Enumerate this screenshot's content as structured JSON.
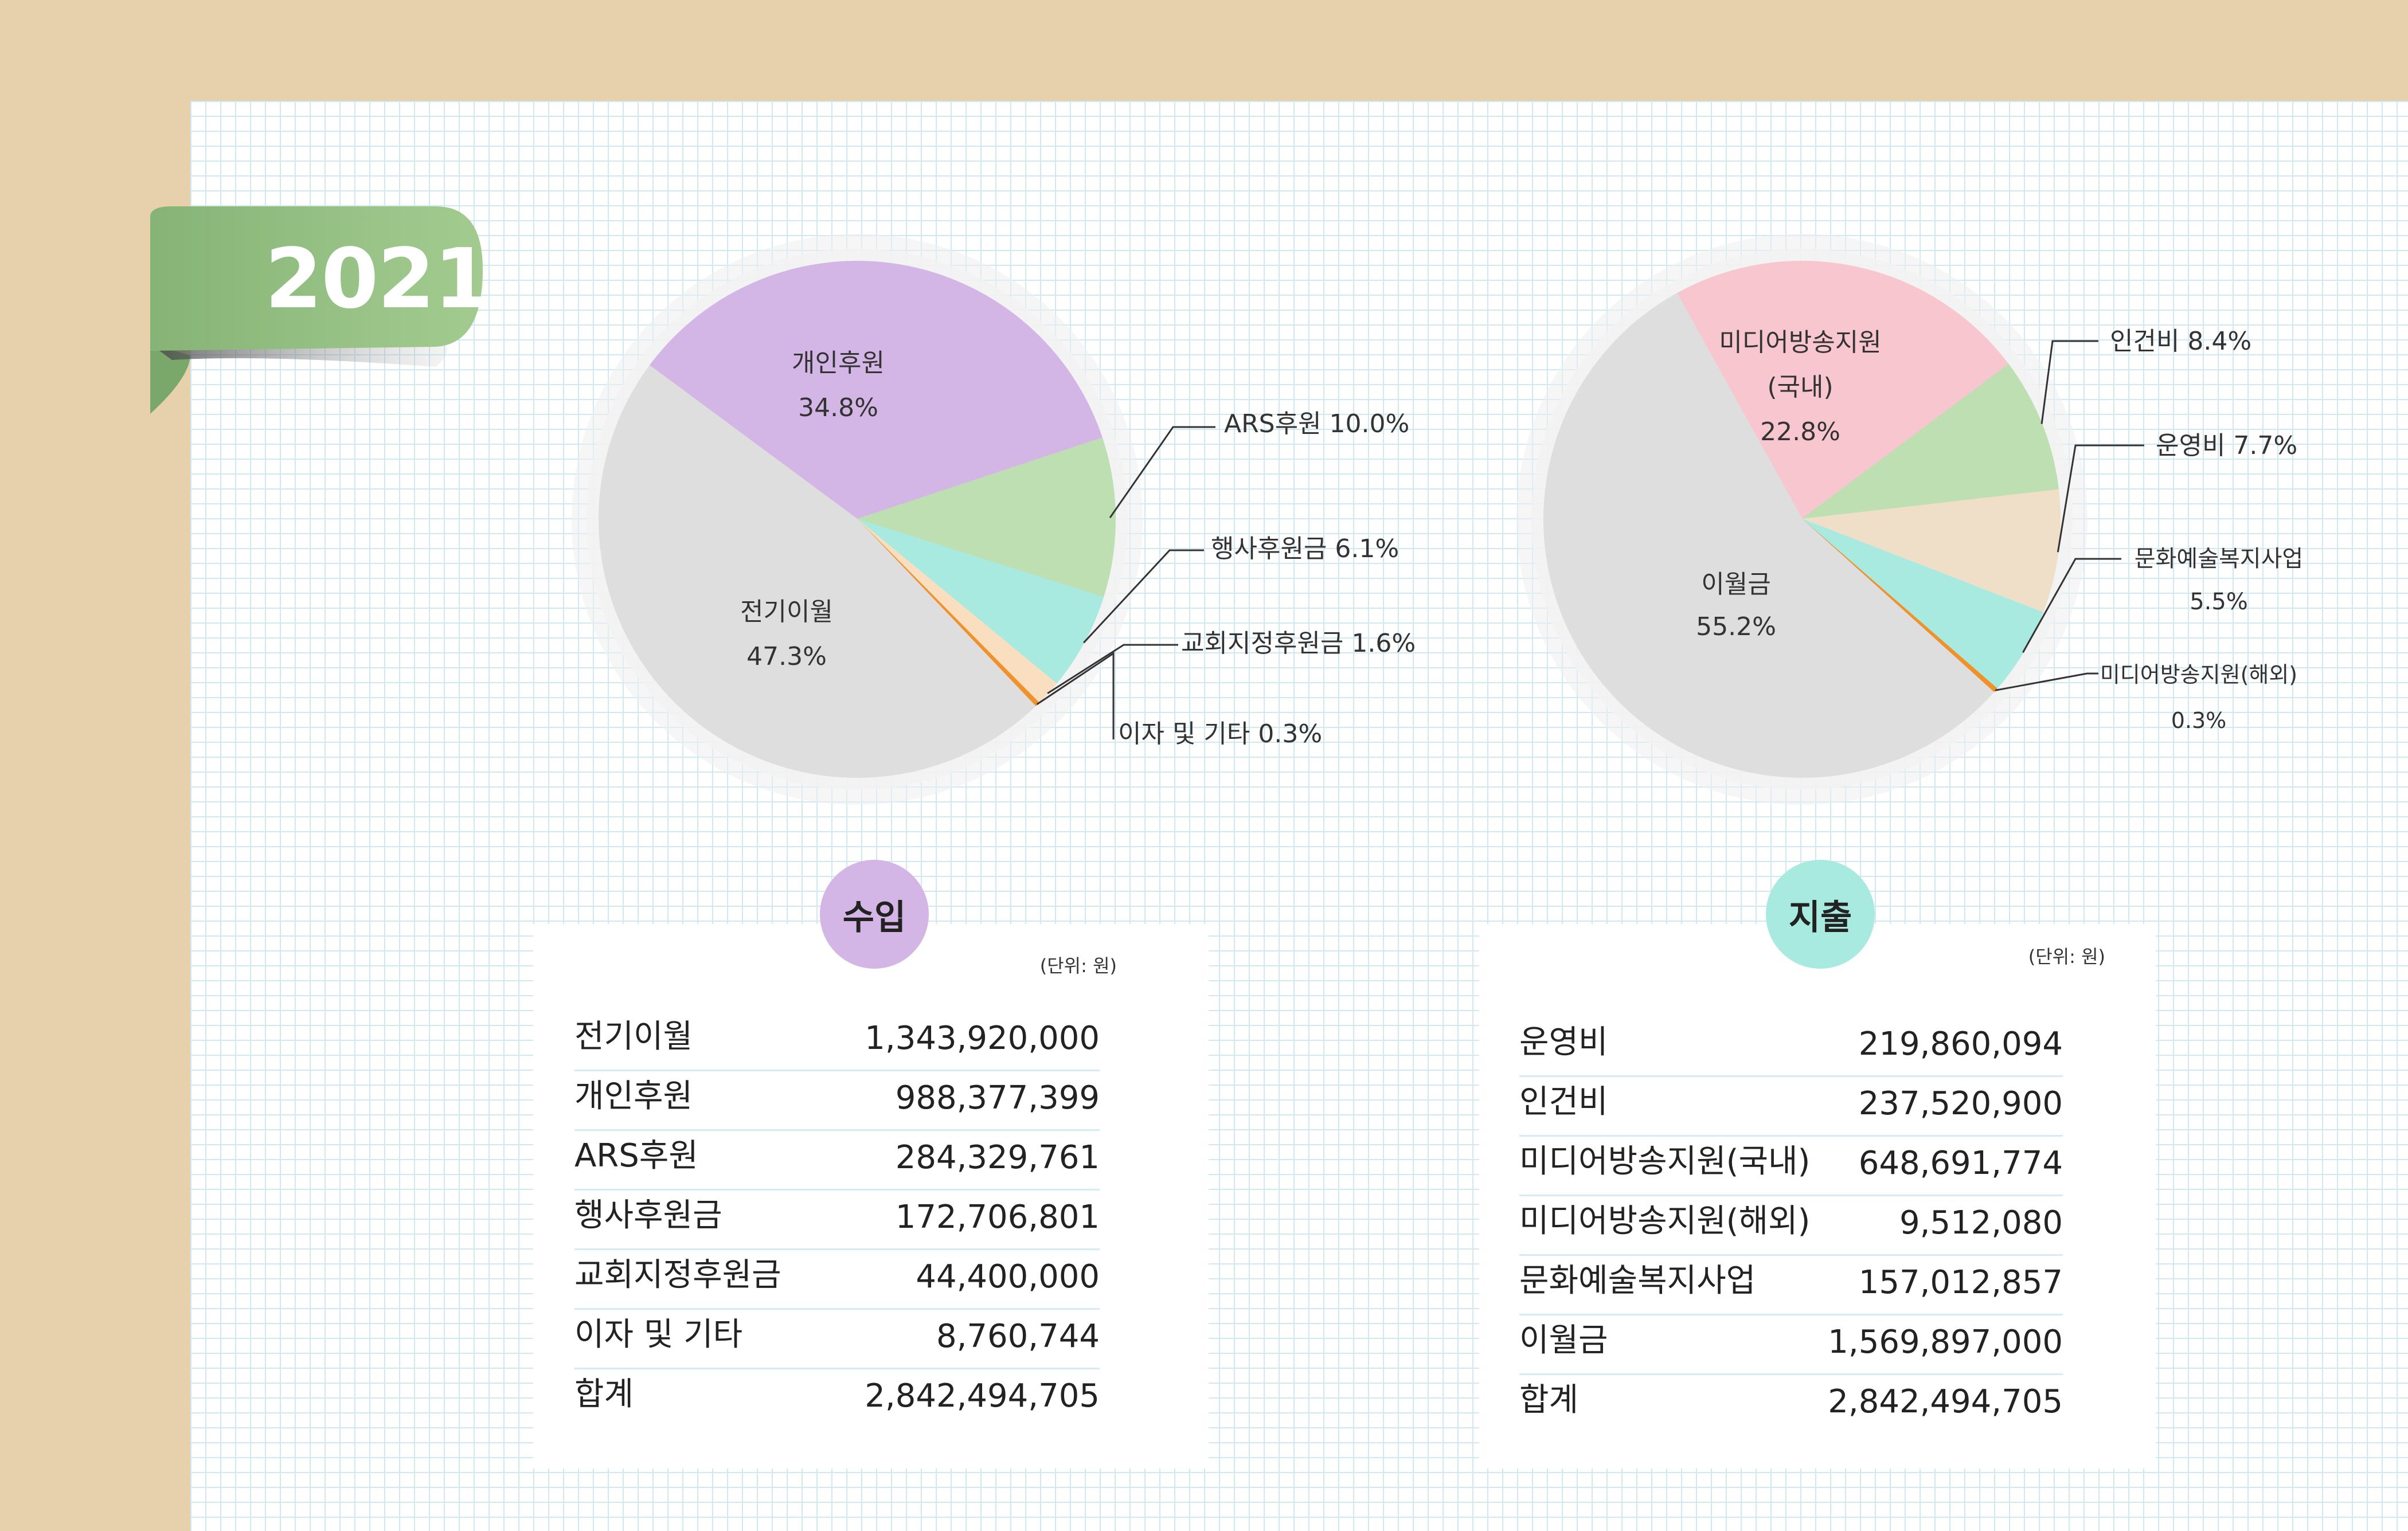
{
  "year": "2021",
  "income": {
    "title": "수입",
    "unit": "(단위: 원)",
    "rows": [
      {
        "label": "전기이월",
        "amount": "1,343,920,000"
      },
      {
        "label": "개인후원",
        "amount": "988,377,399"
      },
      {
        "label": "ARS후원",
        "amount": "284,329,761"
      },
      {
        "label": "행사후원금",
        "amount": "172,706,801"
      },
      {
        "label": "교회지정후원금",
        "amount": "44,400,000"
      },
      {
        "label": "이자 및 기타",
        "amount": "8,760,744"
      },
      {
        "label": "합계",
        "amount": "2,842,494,705"
      }
    ]
  },
  "expense": {
    "title": "지출",
    "unit": "(단위: 원)",
    "rows": [
      {
        "label": "운영비",
        "amount": "219,860,094"
      },
      {
        "label": "인건비",
        "amount": "237,520,900"
      },
      {
        "label": "미디어방송지원(국내)",
        "amount": "648,691,774"
      },
      {
        "label": "미디어방송지원(해외)",
        "amount": "9,512,080"
      },
      {
        "label": "문화예술복지사업",
        "amount": "157,012,857"
      },
      {
        "label": "이월금",
        "amount": "1,569,897,000"
      },
      {
        "label": "합계",
        "amount": "2,842,494,705"
      }
    ]
  },
  "chart_data": [
    {
      "type": "pie",
      "slices": [
        {
          "name": "개인후원",
          "value": 34.8,
          "color": "#d4b6e6",
          "label_lines": [
            "개인후원",
            "34.8%"
          ]
        },
        {
          "name": "ARS후원",
          "value": 10.0,
          "color": "#bddfb1",
          "label_lines": [
            "ARS후원 10.0%"
          ]
        },
        {
          "name": "행사후원금",
          "value": 6.1,
          "color": "#a9eae0",
          "label_lines": [
            "행사후원금 6.1%"
          ]
        },
        {
          "name": "교회지정후원금",
          "value": 1.6,
          "color": "#f9dfc0",
          "label_lines": [
            "교회지정후원금 1.6%"
          ]
        },
        {
          "name": "이자 및 기타",
          "value": 0.3,
          "color": "#f0912a",
          "label_lines": [
            "이자 및 기타 0.3%"
          ]
        },
        {
          "name": "전기이월",
          "value": 47.3,
          "color": "#dedede",
          "label_lines": [
            "전기이월",
            "47.3%"
          ]
        }
      ]
    },
    {
      "type": "pie",
      "slices": [
        {
          "name": "미디어방송지원(국내)",
          "value": 22.8,
          "color": "#f7c6cf",
          "label_lines": [
            "미디어방송지원",
            "(국내)",
            "22.8%"
          ]
        },
        {
          "name": "인건비",
          "value": 8.4,
          "color": "#bddfb1",
          "label_lines": [
            "인건비 8.4%"
          ]
        },
        {
          "name": "운영비",
          "value": 7.7,
          "color": "#efdfc9",
          "label_lines": [
            "운영비 7.7%"
          ]
        },
        {
          "name": "문화예술복지사업",
          "value": 5.5,
          "color": "#a9eae0",
          "label_lines": [
            "문화예술복지사업",
            "5.5%"
          ]
        },
        {
          "name": "미디어방송지원(해외)",
          "value": 0.3,
          "color": "#f0912a",
          "label_lines": [
            "미디어방송지원(해외)",
            "0.3%"
          ]
        },
        {
          "name": "이월금",
          "value": 55.2,
          "color": "#dedede",
          "label_lines": [
            "이월금",
            "55.2%"
          ]
        }
      ]
    }
  ]
}
